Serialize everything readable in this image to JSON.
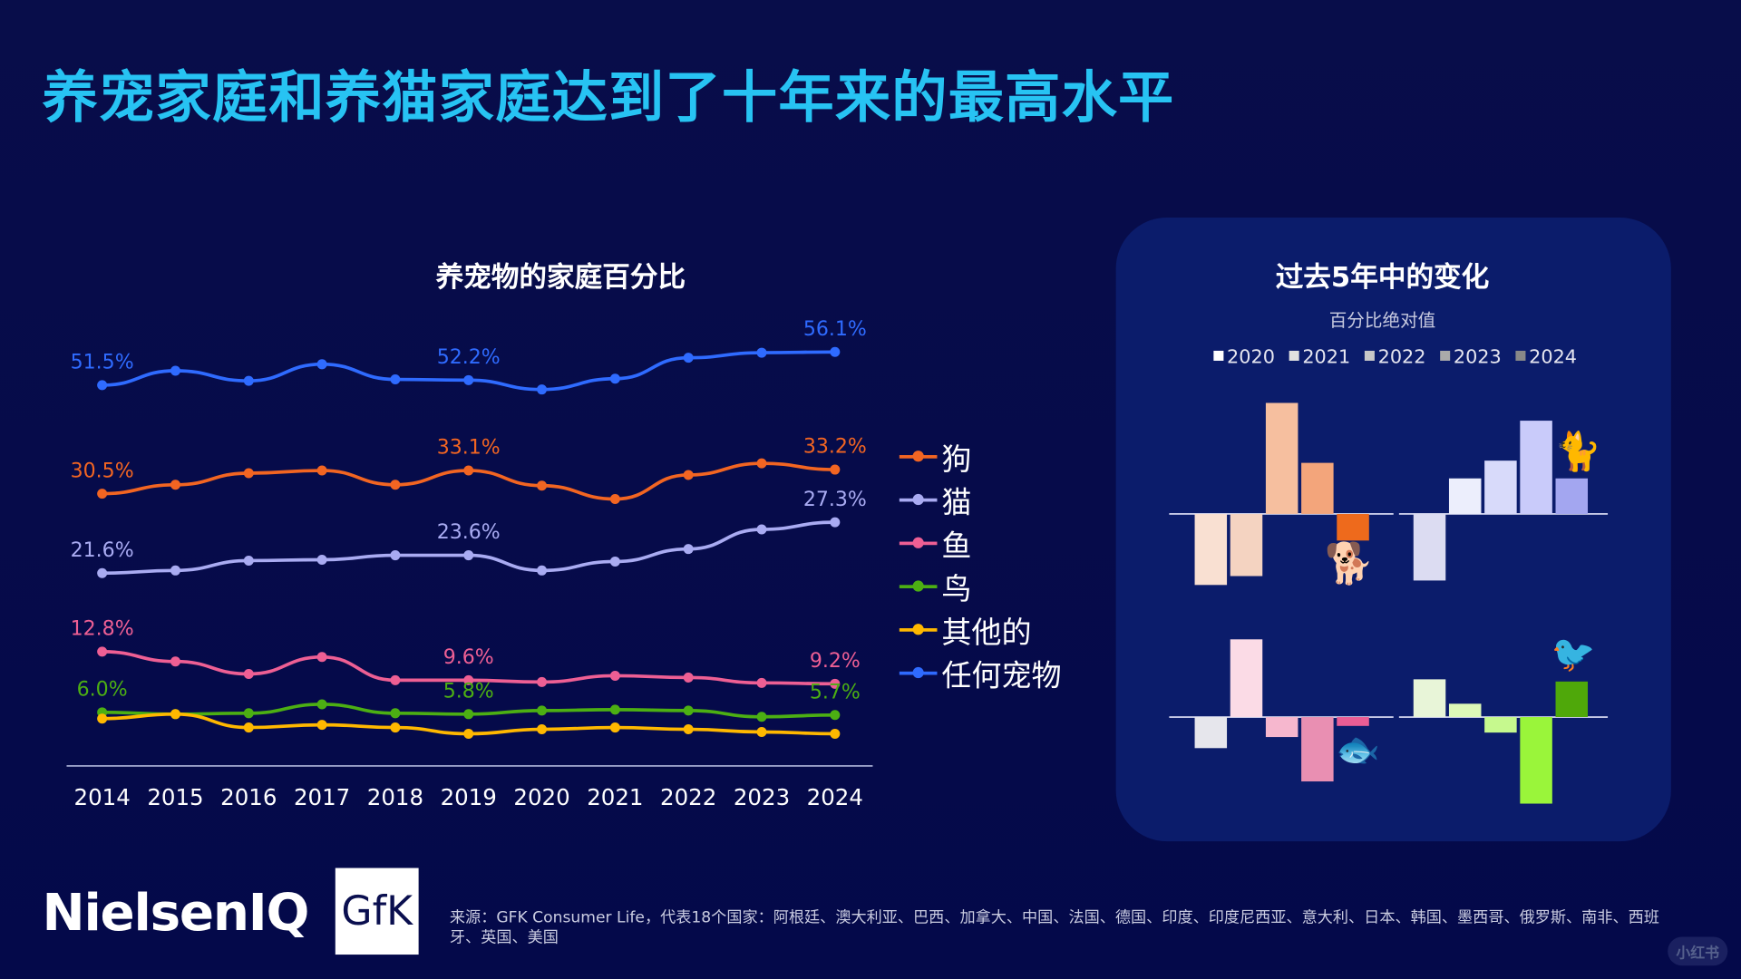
{
  "title": "养宠家庭和养猫家庭达到了十年来的最高水平",
  "chart_data": [
    {
      "type": "line",
      "title": "养宠物的家庭百分比",
      "unit": "%",
      "x": [
        2014,
        2015,
        2016,
        2017,
        2018,
        2019,
        2020,
        2021,
        2022,
        2023,
        2024
      ],
      "grid": false,
      "legend_placement": "right",
      "y_axis_break": true,
      "series": [
        {
          "name": "狗",
          "color": "#f26522",
          "values": [
            30.5,
            31.5,
            32.8,
            33.1,
            31.5,
            33.1,
            31.4,
            29.9,
            32.6,
            33.9,
            33.2
          ],
          "labels": {
            "2014": "30.5%",
            "2019": "33.1%",
            "2024": "33.2%"
          }
        },
        {
          "name": "猫",
          "color": "#a9abf2",
          "values": [
            21.6,
            21.9,
            23.0,
            23.1,
            23.6,
            23.6,
            21.9,
            22.9,
            24.3,
            26.5,
            27.3
          ],
          "labels": {
            "2014": "21.6%",
            "2019": "23.6%",
            "2024": "27.3%"
          }
        },
        {
          "name": "鱼",
          "color": "#ee5f94",
          "values": [
            12.8,
            11.7,
            10.3,
            12.2,
            9.6,
            9.6,
            9.4,
            10.1,
            9.9,
            9.3,
            9.2
          ],
          "labels": {
            "2014": "12.8%",
            "2019": "9.6%",
            "2024": "9.2%"
          }
        },
        {
          "name": "鸟",
          "color": "#4caf13",
          "values": [
            6.0,
            5.8,
            5.9,
            6.9,
            5.9,
            5.8,
            6.2,
            6.3,
            6.2,
            5.5,
            5.7
          ],
          "labels": {
            "2014": "6.0%",
            "2019": "5.8%",
            "2024": "5.7%"
          }
        },
        {
          "name": "其他的",
          "color": "#ffb800",
          "values": [
            5.3,
            5.8,
            4.3,
            4.6,
            4.3,
            3.6,
            4.1,
            4.3,
            4.1,
            3.8,
            3.6
          ],
          "labels": {}
        },
        {
          "name": "任何宠物",
          "color": "#2f6bff",
          "values": [
            51.5,
            53.5,
            52.1,
            54.4,
            52.3,
            52.2,
            50.9,
            52.4,
            55.3,
            56.0,
            56.1
          ],
          "labels": {
            "2014": "51.5%",
            "2019": "52.2%",
            "2024": "56.1%"
          }
        }
      ]
    },
    {
      "type": "bar",
      "title": "过去5年中的变化",
      "subtitle": "百分比绝对值",
      "categories": [
        "2020",
        "2021",
        "2022",
        "2023",
        "2024"
      ],
      "legend_placement": "top",
      "legend_colors": [
        "#ffffff",
        "#e0e0e0",
        "#c8c8c8",
        "#aaaaaa",
        "#888888"
      ],
      "groups": [
        {
          "name": "狗",
          "icon": "dog-icon",
          "values": [
            -3.2,
            -2.8,
            5.0,
            2.3,
            -1.2
          ],
          "colors": [
            "#f9e0d2",
            "#f4d3c1",
            "#f6bf9f",
            "#f3a57b",
            "#ee6a1c"
          ]
        },
        {
          "name": "猫",
          "icon": "cat-icon",
          "values": [
            -3.0,
            1.6,
            2.4,
            4.2,
            1.6
          ],
          "colors": [
            "#dcdcf2",
            "#eceefc",
            "#d8dafa",
            "#c9cbfa",
            "#a3a6f0"
          ]
        },
        {
          "name": "鱼",
          "icon": "fish-icon",
          "values": [
            -1.4,
            3.5,
            -0.9,
            -2.9,
            -0.4
          ],
          "colors": [
            "#e6e6ec",
            "#fbdbe6",
            "#f6b7ce",
            "#e98fb2",
            "#ea5d95"
          ]
        },
        {
          "name": "鸟",
          "icon": "bird-icon",
          "values": [
            1.7,
            0.6,
            -0.7,
            -3.9,
            1.6
          ],
          "colors": [
            "#e8f5d8",
            "#ddf9b8",
            "#c6f98e",
            "#9af53a",
            "#4fa80a"
          ]
        }
      ]
    }
  ],
  "footer": {
    "source": "来源：GFK Consumer Life，代表18个国家：阿根廷、澳大利亚、巴西、加拿大、中国、法国、德国、印度、印度尼西亚、意大利、日本、韩国、墨西哥、俄罗斯、南非、西班牙、英国、美国",
    "logo_nielsen": "NielsenIQ",
    "logo_gfk": "GfK",
    "watermark": "小红书"
  },
  "colors": {
    "title": "#27c3f3",
    "background": "#050a45",
    "panel": "#0b1c6b"
  }
}
